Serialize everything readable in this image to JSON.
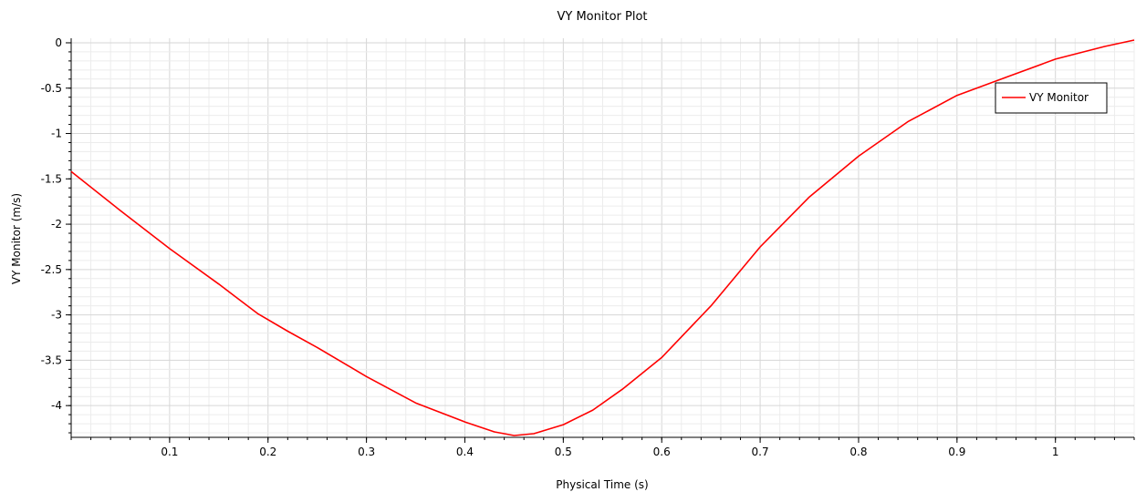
{
  "chart_data": {
    "type": "line",
    "title": "VY Monitor Plot",
    "xlabel": "Physical Time (s)",
    "ylabel": "VY Monitor (m/s)",
    "xlim": [
      0.0,
      1.08
    ],
    "ylim": [
      -4.35,
      0.05
    ],
    "x_ticks": [
      0.1,
      0.2,
      0.3,
      0.4,
      0.5,
      0.6,
      0.7,
      0.8,
      0.9,
      1
    ],
    "x_tick_labels": [
      "0.1",
      "0.2",
      "0.3",
      "0.4",
      "0.5",
      "0.6",
      "0.7",
      "0.8",
      "0.9",
      "1"
    ],
    "y_ticks": [
      0,
      -0.5,
      -1,
      -1.5,
      -2,
      -2.5,
      -3,
      -3.5,
      -4
    ],
    "y_tick_labels": [
      "0",
      "-0.5",
      "-1",
      "-1.5",
      "-2",
      "-2.5",
      "-3",
      "-3.5",
      "-4"
    ],
    "grid": true,
    "legend_position": "top-right",
    "series": [
      {
        "name": "VY Monitor",
        "color": "#ff0000",
        "x": [
          0.0,
          0.05,
          0.1,
          0.15,
          0.19,
          0.22,
          0.25,
          0.3,
          0.35,
          0.4,
          0.43,
          0.45,
          0.47,
          0.5,
          0.53,
          0.56,
          0.6,
          0.65,
          0.7,
          0.75,
          0.8,
          0.85,
          0.9,
          0.95,
          1.0,
          1.05,
          1.08
        ],
        "values": [
          -1.42,
          -1.85,
          -2.27,
          -2.66,
          -2.99,
          -3.18,
          -3.36,
          -3.68,
          -3.97,
          -4.18,
          -4.29,
          -4.33,
          -4.31,
          -4.21,
          -4.05,
          -3.82,
          -3.47,
          -2.9,
          -2.25,
          -1.7,
          -1.25,
          -0.87,
          -0.58,
          -0.38,
          -0.18,
          -0.04,
          0.03
        ]
      }
    ]
  }
}
